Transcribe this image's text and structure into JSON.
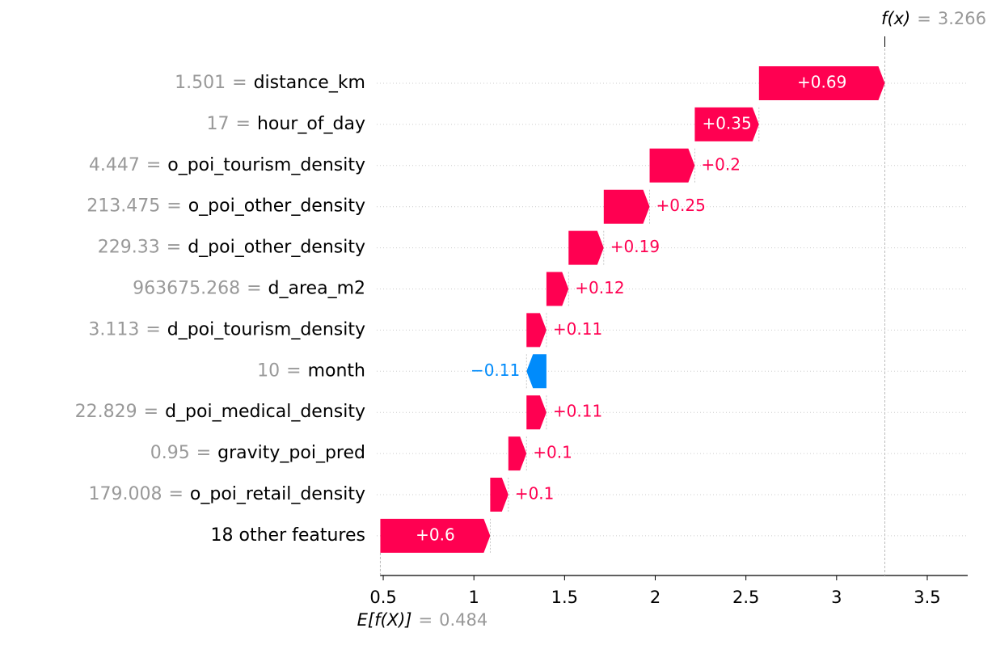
{
  "chart_data": {
    "type": "waterfall",
    "features": [
      "distance_km",
      "hour_of_day",
      "o_poi_tourism_density",
      "o_poi_other_density",
      "d_poi_other_density",
      "d_area_m2",
      "d_poi_tourism_density",
      "month",
      "d_poi_medical_density",
      "gravity_poi_pred",
      "o_poi_retail_density",
      "18 other features"
    ],
    "feature_values": [
      "1.501",
      "17",
      "4.447",
      "213.475",
      "229.33",
      "963675.268",
      "3.113",
      "10",
      "22.829",
      "0.95",
      "179.008",
      null
    ],
    "separator": "=",
    "values": [
      0.694,
      0.354,
      0.249,
      0.253,
      0.194,
      0.122,
      0.11,
      -0.11,
      0.11,
      0.1,
      0.1,
      0.606
    ],
    "value_labels": [
      "+0.69",
      "+0.35",
      "+0.2",
      "+0.25",
      "+0.19",
      "+0.12",
      "+0.11",
      "−0.11",
      "+0.11",
      "+0.1",
      "+0.1",
      "+0.6"
    ],
    "base_label": "E[f(X)]",
    "base_value": 0.484,
    "output_label": "f(x)",
    "output_value": 3.266,
    "positive_color": "#ff0051",
    "negative_color": "#008bfb",
    "xlim": [
      0.482,
      3.723
    ],
    "xticks": [
      0.5,
      1.0,
      1.5,
      2.0,
      2.5,
      3.0,
      3.5
    ]
  }
}
